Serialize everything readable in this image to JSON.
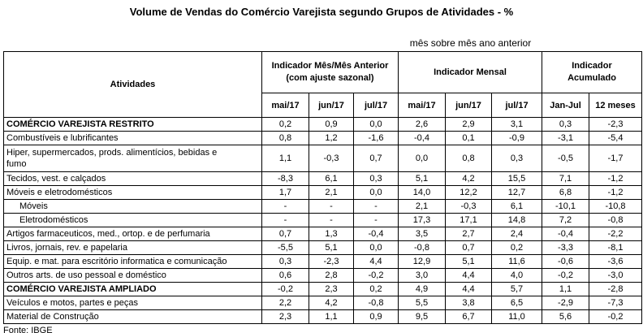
{
  "title": "Volume de Vendas do Comércio Varejista segundo Grupos de Atividades - %",
  "subtitle": "mês sobre mês ano anterior",
  "source": "Fonte: IBGE",
  "table": {
    "activities_header": "Atividades",
    "groups": [
      {
        "label": "Indicador Mês/Mês Anterior\n(com ajuste sazonal)",
        "columns": [
          "mai/17",
          "jun/17",
          "jul/17"
        ]
      },
      {
        "label": "Indicador Mensal",
        "columns": [
          "mai/17",
          "jun/17",
          "jul/17"
        ]
      },
      {
        "label": "Indicador\nAcumulado",
        "columns": [
          "Jan-Jul",
          "12 meses"
        ]
      }
    ],
    "rows": [
      {
        "label": "COMÉRCIO VAREJISTA RESTRITO",
        "style": "bold",
        "values": [
          "0,2",
          "0,9",
          "0,0",
          "2,6",
          "2,9",
          "3,1",
          "0,3",
          "-2,3"
        ]
      },
      {
        "label": "Combustíveis e lubrificantes",
        "style": "normal",
        "values": [
          "0,8",
          "1,2",
          "-1,6",
          "-0,4",
          "0,1",
          "-0,9",
          "-3,1",
          "-5,4"
        ]
      },
      {
        "label": "Hiper, supermercados, prods. alimentícios, bebidas e\nfumo",
        "style": "tall",
        "values": [
          "1,1",
          "-0,3",
          "0,7",
          "0,0",
          "0,8",
          "0,3",
          "-0,5",
          "-1,7"
        ]
      },
      {
        "label": "Tecidos, vest. e calçados",
        "style": "normal",
        "values": [
          "-8,3",
          "6,1",
          "0,3",
          "5,1",
          "4,2",
          "15,5",
          "7,1",
          "-1,2"
        ]
      },
      {
        "label": "Móveis e eletrodomésticos",
        "style": "normal",
        "values": [
          "1,7",
          "2,1",
          "0,0",
          "14,0",
          "12,2",
          "12,7",
          "6,8",
          "-1,2"
        ]
      },
      {
        "label": "Móveis",
        "style": "indent",
        "values": [
          "-",
          "-",
          "-",
          "2,1",
          "-0,3",
          "6,1",
          "-10,1",
          "-10,8"
        ]
      },
      {
        "label": "Eletrodomésticos",
        "style": "indent",
        "values": [
          "-",
          "-",
          "-",
          "17,3",
          "17,1",
          "14,8",
          "7,2",
          "-0,8"
        ]
      },
      {
        "label": "Artigos farmaceuticos, med., ortop. e de perfumaria",
        "style": "normal",
        "values": [
          "0,7",
          "1,3",
          "-0,4",
          "3,5",
          "2,7",
          "2,4",
          "-0,4",
          "-2,2"
        ]
      },
      {
        "label": "Livros, jornais, rev. e papelaria",
        "style": "normal",
        "values": [
          "-5,5",
          "5,1",
          "0,0",
          "-0,8",
          "0,7",
          "0,2",
          "-3,3",
          "-8,1"
        ]
      },
      {
        "label": "Equip. e mat. para escritório informatica e comunicação",
        "style": "normal",
        "values": [
          "0,3",
          "-2,3",
          "4,4",
          "12,9",
          "5,1",
          "11,6",
          "-0,6",
          "-3,6"
        ]
      },
      {
        "label": "Outros arts. de uso pessoal e doméstico",
        "style": "normal",
        "values": [
          "0,6",
          "2,8",
          "-0,2",
          "3,0",
          "4,4",
          "4,0",
          "-0,2",
          "-3,0"
        ]
      },
      {
        "label": "COMÉRCIO VAREJISTA AMPLIADO",
        "style": "bold",
        "values": [
          "-0,2",
          "2,3",
          "0,2",
          "4,9",
          "4,4",
          "5,7",
          "1,1",
          "-2,8"
        ]
      },
      {
        "label": "Veículos e motos, partes e peças",
        "style": "normal",
        "values": [
          "2,2",
          "4,2",
          "-0,8",
          "5,5",
          "3,8",
          "6,5",
          "-2,9",
          "-7,3"
        ]
      },
      {
        "label": "Material de Construção",
        "style": "normal",
        "values": [
          "2,3",
          "1,1",
          "0,9",
          "9,5",
          "6,7",
          "11,0",
          "5,6",
          "-0,2"
        ]
      }
    ]
  }
}
